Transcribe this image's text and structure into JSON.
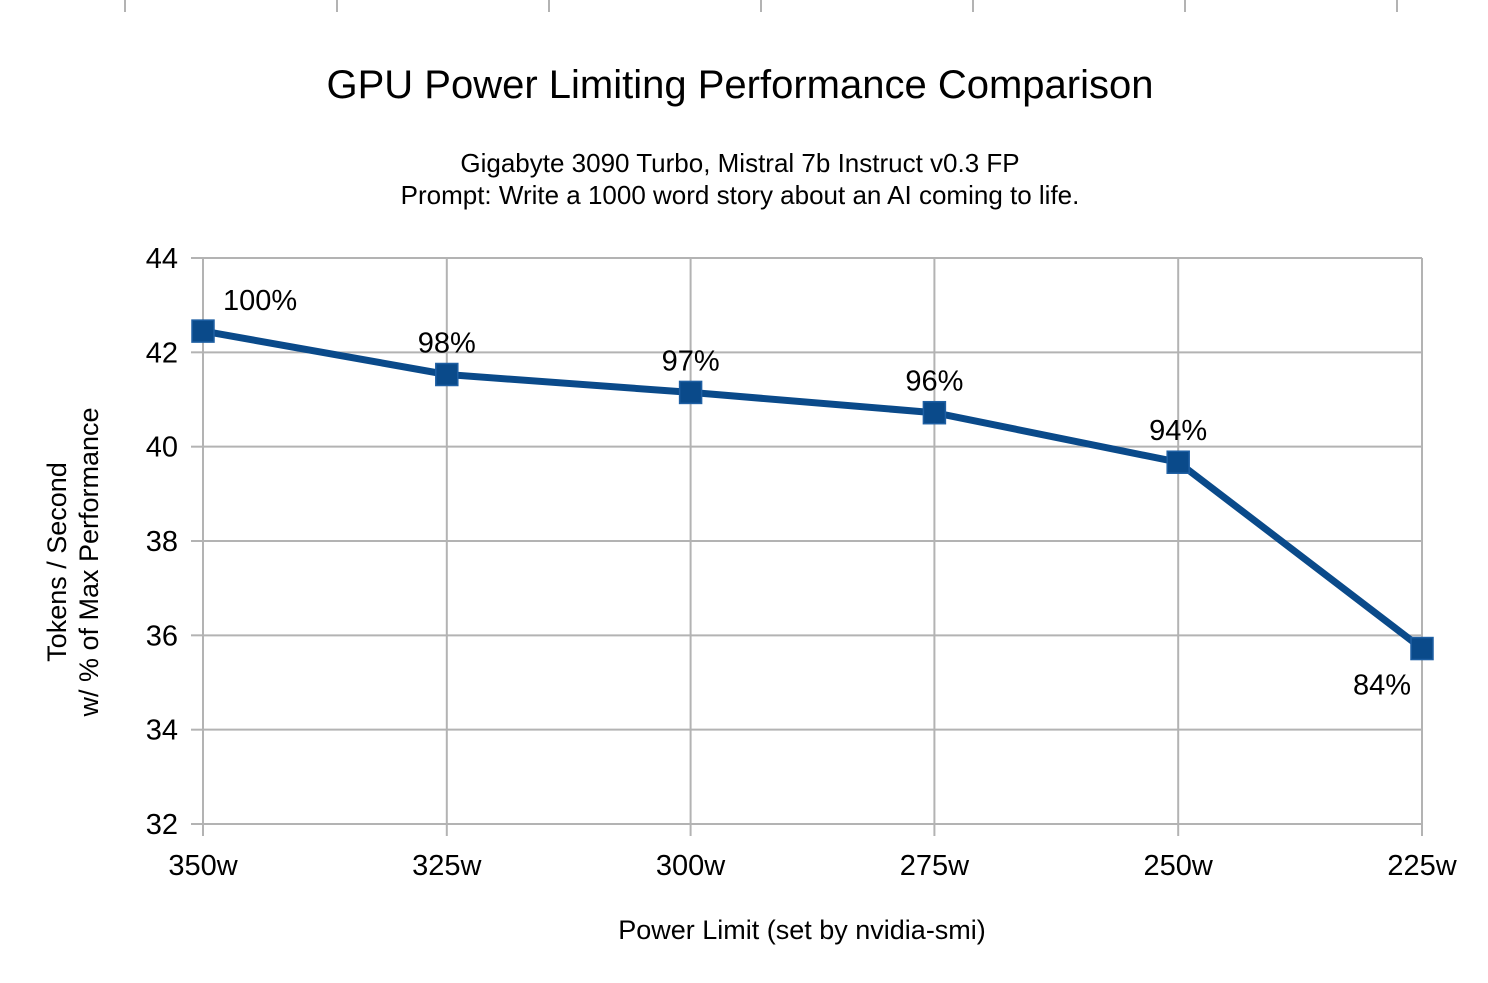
{
  "chart_data": {
    "type": "line",
    "title": "GPU Power Limiting Performance Comparison",
    "subtitle_lines": [
      "Gigabyte 3090 Turbo, Mistral 7b Instruct v0.3 FP",
      "Prompt: Write a 1000 word story about an AI coming to life."
    ],
    "xlabel": "Power Limit (set by nvidia-smi)",
    "ylabel_lines": [
      "Tokens / Second",
      "w/ % of Max Performance"
    ],
    "categories": [
      "350w",
      "325w",
      "300w",
      "275w",
      "250w",
      "225w"
    ],
    "series": [
      {
        "values": [
          42.45,
          41.53,
          41.15,
          40.72,
          39.67,
          35.72
        ],
        "data_labels": [
          "100%",
          "98%",
          "97%",
          "96%",
          "94%",
          "84%"
        ]
      }
    ],
    "ylim": [
      32,
      44
    ],
    "yticks": [
      32,
      34,
      36,
      38,
      40,
      42,
      44
    ],
    "grid": true,
    "legend": "none",
    "line_color": "#0a4a8a",
    "grid_color": "#b3b3b3"
  }
}
